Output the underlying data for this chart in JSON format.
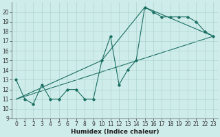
{
  "xlabel": "Humidex (Indice chaleur)",
  "bg_color": "#ceecea",
  "grid_color": "#aed4d0",
  "line_color": "#1a6e62",
  "xlim": [
    -0.5,
    23.5
  ],
  "ylim": [
    9,
    21
  ],
  "yticks": [
    9,
    10,
    11,
    12,
    13,
    14,
    15,
    16,
    17,
    18,
    19,
    20
  ],
  "xticks": [
    0,
    1,
    2,
    3,
    4,
    5,
    6,
    7,
    8,
    9,
    10,
    11,
    12,
    13,
    14,
    15,
    16,
    17,
    18,
    19,
    20,
    21,
    22,
    23
  ],
  "series1_x": [
    0,
    1,
    2,
    3,
    4,
    5,
    6,
    7,
    8,
    9,
    10,
    11,
    12,
    13,
    14,
    15,
    16,
    17,
    18,
    19,
    20,
    21,
    22,
    23
  ],
  "series1_y": [
    13,
    11,
    10.5,
    12.5,
    11,
    11,
    12,
    12,
    11,
    11,
    15,
    17.5,
    12.5,
    14,
    15,
    20.5,
    20,
    19.5,
    19.5,
    19.5,
    19.5,
    19,
    18,
    17.5
  ],
  "series2_x": [
    0,
    10,
    15,
    23
  ],
  "series2_y": [
    11,
    15,
    20.5,
    17.5
  ],
  "series3_x": [
    0,
    23
  ],
  "series3_y": [
    11,
    17.5
  ],
  "font_size": 6,
  "tick_font_size": 5.5,
  "xlabel_fontsize": 6.5
}
